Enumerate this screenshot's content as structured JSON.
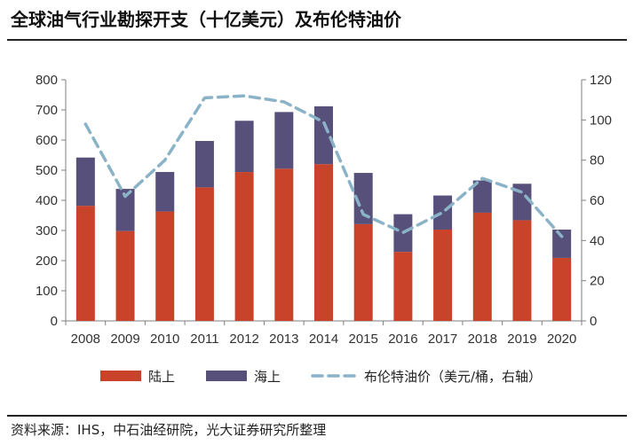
{
  "title": "全球油气行业勘探开支（十亿美元）及布伦特油价",
  "source": "资料来源：IHS，中石油经研院，光大证券研究所整理",
  "chart_data": {
    "type": "bar",
    "stacked": true,
    "categories": [
      "2008",
      "2009",
      "2010",
      "2011",
      "2012",
      "2013",
      "2014",
      "2015",
      "2016",
      "2017",
      "2018",
      "2019",
      "2020"
    ],
    "series": [
      {
        "name": "陆上",
        "color": "#C9432A",
        "values": [
          382,
          298,
          363,
          443,
          494,
          505,
          520,
          321,
          229,
          303,
          359,
          334,
          209
        ]
      },
      {
        "name": "海上",
        "color": "#56507A",
        "values": [
          160,
          140,
          131,
          154,
          170,
          188,
          192,
          170,
          125,
          113,
          107,
          121,
          94
        ]
      },
      {
        "name": "布伦特油价（美元/桶，右轴）",
        "axis": "right",
        "style": "dashed-line",
        "color": "#8BB3C7",
        "values": [
          98,
          62,
          80,
          111,
          112,
          109,
          99,
          53,
          44,
          54,
          71,
          64,
          42
        ]
      }
    ],
    "y_left": {
      "min": 0,
      "max": 800,
      "ticks": [
        0,
        100,
        200,
        300,
        400,
        500,
        600,
        700,
        800
      ]
    },
    "y_right": {
      "min": 0,
      "max": 120,
      "ticks": [
        0,
        20,
        40,
        60,
        80,
        100,
        120
      ]
    },
    "legend": [
      "陆上",
      "海上",
      "布伦特油价（美元/桶，右轴）"
    ]
  }
}
